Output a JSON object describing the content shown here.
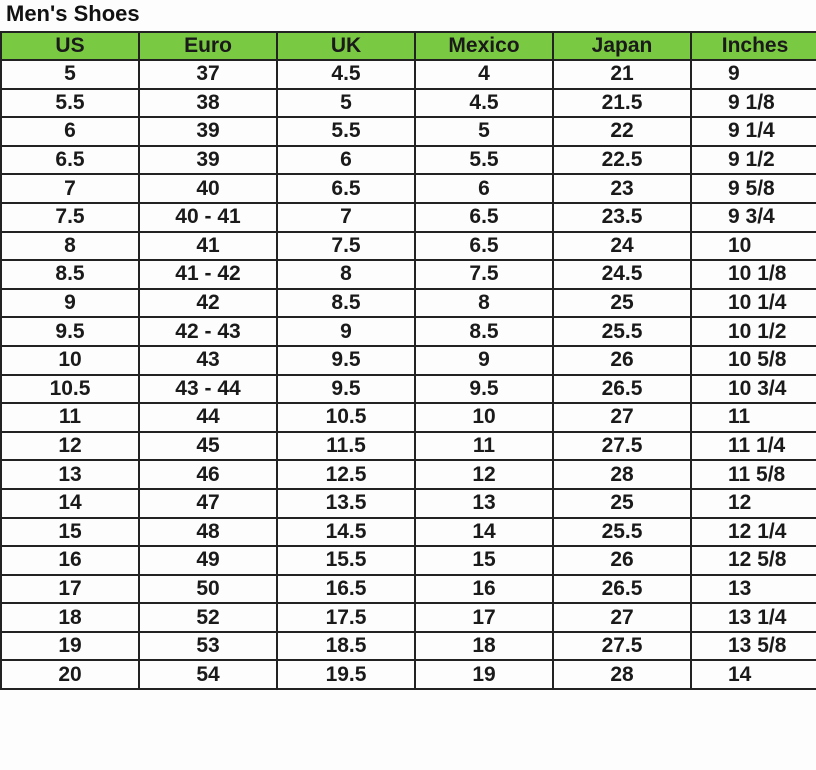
{
  "title": "Men's Shoes",
  "header_color": "#7ac943",
  "columns": [
    "US",
    "Euro",
    "UK",
    "Mexico",
    "Japan",
    "Inches"
  ],
  "rows": [
    [
      "5",
      "37",
      "4.5",
      "4",
      "21",
      "9"
    ],
    [
      "5.5",
      "38",
      "5",
      "4.5",
      "21.5",
      "9 1/8"
    ],
    [
      "6",
      "39",
      "5.5",
      "5",
      "22",
      "9 1/4"
    ],
    [
      "6.5",
      "39",
      "6",
      "5.5",
      "22.5",
      "9 1/2"
    ],
    [
      "7",
      "40",
      "6.5",
      "6",
      "23",
      "9 5/8"
    ],
    [
      "7.5",
      "40 - 41",
      "7",
      "6.5",
      "23.5",
      "9 3/4"
    ],
    [
      "8",
      "41",
      "7.5",
      "6.5",
      "24",
      "10"
    ],
    [
      "8.5",
      "41 - 42",
      "8",
      "7.5",
      "24.5",
      "10 1/8"
    ],
    [
      "9",
      "42",
      "8.5",
      "8",
      "25",
      "10 1/4"
    ],
    [
      "9.5",
      "42 - 43",
      "9",
      "8.5",
      "25.5",
      "10 1/2"
    ],
    [
      "10",
      "43",
      "9.5",
      "9",
      "26",
      "10 5/8"
    ],
    [
      "10.5",
      "43 - 44",
      "9.5",
      "9.5",
      "26.5",
      "10 3/4"
    ],
    [
      "11",
      "44",
      "10.5",
      "10",
      "27",
      "11"
    ],
    [
      "12",
      "45",
      "11.5",
      "11",
      "27.5",
      "11 1/4"
    ],
    [
      "13",
      "46",
      "12.5",
      "12",
      "28",
      "11 5/8"
    ],
    [
      "14",
      "47",
      "13.5",
      "13",
      "25",
      "12"
    ],
    [
      "15",
      "48",
      "14.5",
      "14",
      "25.5",
      "12 1/4"
    ],
    [
      "16",
      "49",
      "15.5",
      "15",
      "26",
      "12 5/8"
    ],
    [
      "17",
      "50",
      "16.5",
      "16",
      "26.5",
      "13"
    ],
    [
      "18",
      "52",
      "17.5",
      "17",
      "27",
      "13 1/4"
    ],
    [
      "19",
      "53",
      "18.5",
      "18",
      "27.5",
      "13 5/8"
    ],
    [
      "20",
      "54",
      "19.5",
      "19",
      "28",
      "14"
    ]
  ]
}
